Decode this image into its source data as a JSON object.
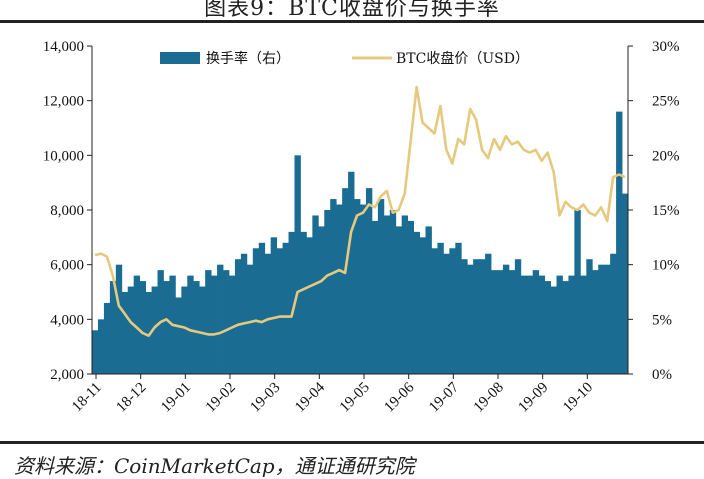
{
  "header": {
    "title": "图表9：BTC收盘价与换手率"
  },
  "footer": {
    "source": "资料来源：CoinMarketCap，通证通研究院"
  },
  "chart_data": {
    "type": "bar+line",
    "title": "图表9：BTC收盘价与换手率",
    "x_labels": [
      "18-11",
      "18-12",
      "19-01",
      "19-02",
      "19-03",
      "19-04",
      "19-05",
      "19-06",
      "19-07",
      "19-08",
      "19-09",
      "19-10"
    ],
    "left_axis": {
      "label": "",
      "ylim": [
        2000,
        14000
      ],
      "ticks": [
        "2,000",
        "4,000",
        "6,000",
        "8,000",
        "10,000",
        "12,000",
        "14,000"
      ]
    },
    "right_axis": {
      "label": "",
      "ylim": [
        0,
        30
      ],
      "ticks": [
        "0%",
        "5%",
        "10%",
        "15%",
        "20%",
        "25%",
        "30%"
      ]
    },
    "legend": {
      "placement": "top-center"
    },
    "series": [
      {
        "name": "换手率（右）",
        "type": "bar",
        "axis": "right",
        "color": "#1b6c93",
        "step_days": 3,
        "start": "2018-11-01",
        "values": [
          4.0,
          5.0,
          6.5,
          8.5,
          10.0,
          7.5,
          8.0,
          9.0,
          8.5,
          7.5,
          8.0,
          9.5,
          8.5,
          9.0,
          7.0,
          8.0,
          9.0,
          8.5,
          8.0,
          9.5,
          9.0,
          10.0,
          9.5,
          9.0,
          10.5,
          11.0,
          10.0,
          11.5,
          12.0,
          11.0,
          12.5,
          11.5,
          12.0,
          13.0,
          20.0,
          13.0,
          12.5,
          14.5,
          13.5,
          15.0,
          16.0,
          15.5,
          17.0,
          18.5,
          16.0,
          15.5,
          17.0,
          14.0,
          16.0,
          14.5,
          15.0,
          13.5,
          14.5,
          14.0,
          13.0,
          12.5,
          13.5,
          11.5,
          12.0,
          11.0,
          11.5,
          12.0,
          10.5,
          10.0,
          10.5,
          10.5,
          11.0,
          9.5,
          9.5,
          10.0,
          9.5,
          10.5,
          9.0,
          9.0,
          9.5,
          9.0,
          8.5,
          8.0,
          9.0,
          8.5,
          9.0,
          15.0,
          9.0,
          10.5,
          9.5,
          10.0,
          10.0,
          11.0,
          24.0,
          16.5
        ]
      },
      {
        "name": "BTC收盘价（USD）",
        "type": "line",
        "axis": "left",
        "color": "#e6c97e",
        "step_days": 3,
        "start": "2018-11-01",
        "values": [
          6350,
          6400,
          6300,
          5600,
          4500,
          4200,
          3900,
          3700,
          3500,
          3400,
          3700,
          3900,
          4000,
          3800,
          3750,
          3700,
          3600,
          3550,
          3500,
          3450,
          3450,
          3500,
          3600,
          3700,
          3800,
          3850,
          3900,
          3950,
          3900,
          4000,
          4050,
          4100,
          4100,
          4100,
          5000,
          5100,
          5200,
          5300,
          5400,
          5600,
          5700,
          5800,
          5700,
          7200,
          7800,
          7900,
          8200,
          8100,
          8500,
          8700,
          7900,
          8000,
          8600,
          10500,
          12500,
          11200,
          11000,
          10800,
          11800,
          10200,
          9700,
          10600,
          10400,
          11700,
          11300,
          10200,
          9900,
          10600,
          10200,
          10700,
          10400,
          10500,
          10200,
          10100,
          10200,
          9800,
          10100,
          9400,
          7800,
          8300,
          8100,
          8000,
          8200,
          7900,
          7800,
          8100,
          7600,
          9200,
          9300,
          9200
        ]
      }
    ]
  }
}
